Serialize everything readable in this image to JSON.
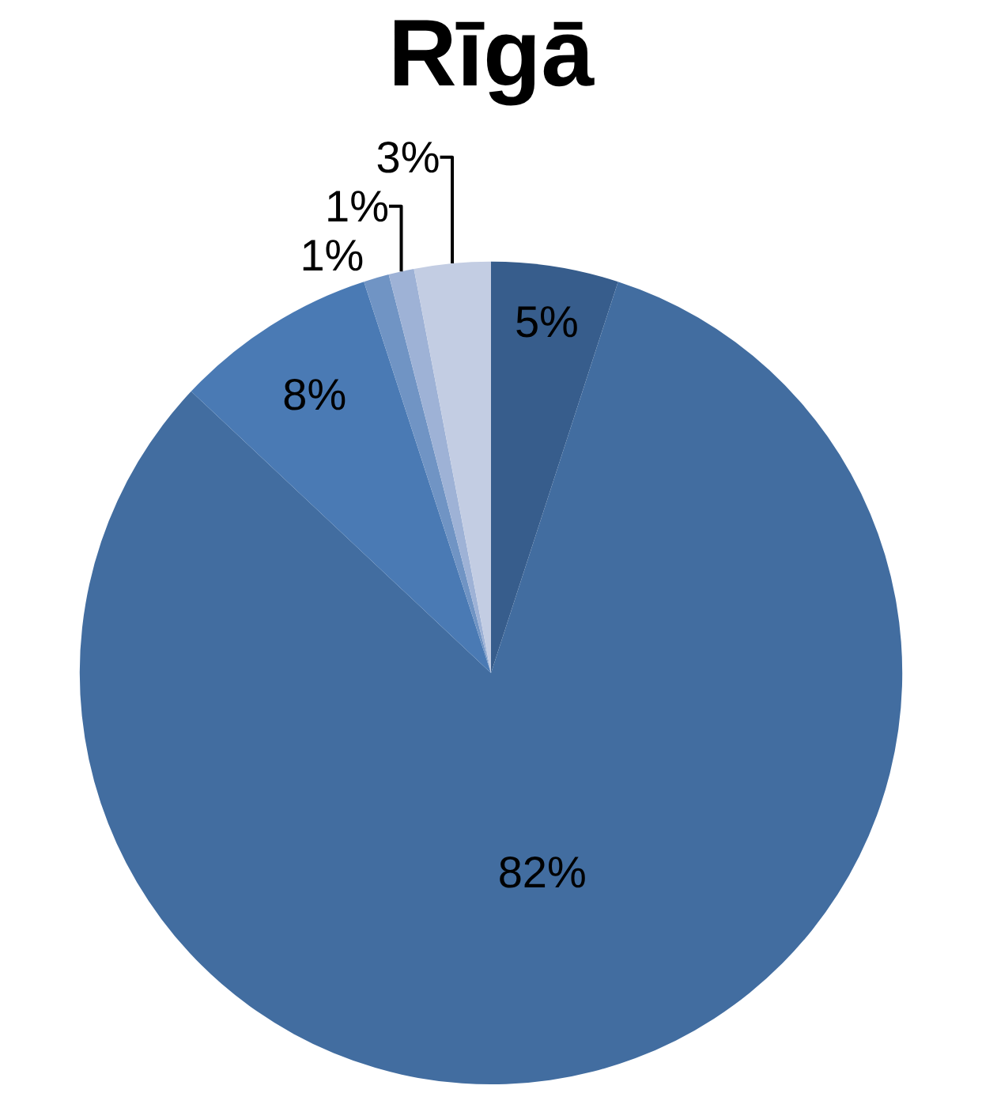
{
  "chart_data": {
    "type": "pie",
    "title": "Rīgā",
    "categories": [
      null,
      null,
      null,
      null,
      null,
      null
    ],
    "values": [
      5,
      82,
      8,
      1,
      1,
      3
    ],
    "colors": [
      "#375d8c",
      "#426da0",
      "#4a7ab4",
      "#7094c4",
      "#9eb2d6",
      "#c3cde3"
    ],
    "value_labels": [
      "5%",
      "82%",
      "8%",
      "1%",
      "1%",
      "3%"
    ]
  }
}
